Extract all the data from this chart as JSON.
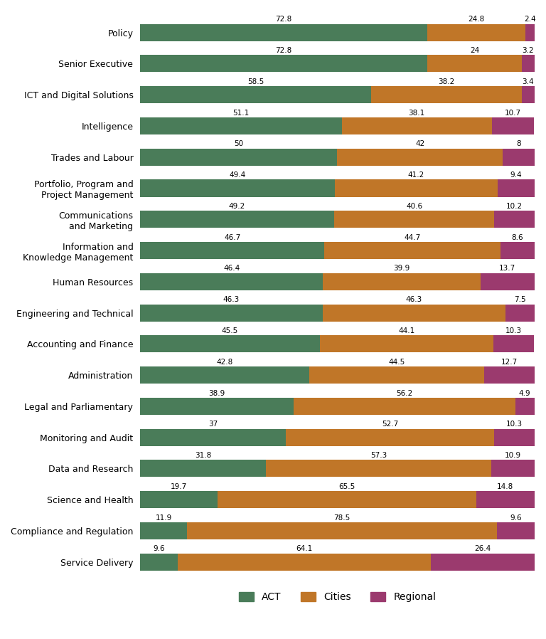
{
  "categories": [
    "Policy",
    "Senior Executive",
    "ICT and Digital Solutions",
    "Intelligence",
    "Trades and Labour",
    "Portfolio, Program and\nProject Management",
    "Communications\nand Marketing",
    "Information and\nKnowledge Management",
    "Human Resources",
    "Engineering and Technical",
    "Accounting and Finance",
    "Administration",
    "Legal and Parliamentary",
    "Monitoring and Audit",
    "Data and Research",
    "Science and Health",
    "Compliance and Regulation",
    "Service Delivery"
  ],
  "ACT": [
    72.8,
    72.8,
    58.5,
    51.1,
    50.0,
    49.4,
    49.2,
    46.7,
    46.4,
    46.3,
    45.5,
    42.8,
    38.9,
    37.0,
    31.8,
    19.7,
    11.9,
    9.6
  ],
  "Cities": [
    24.8,
    24.0,
    38.2,
    38.1,
    42.0,
    41.2,
    40.6,
    44.7,
    39.9,
    46.3,
    44.1,
    44.5,
    56.2,
    52.7,
    57.3,
    65.5,
    78.5,
    64.1
  ],
  "Regional": [
    2.4,
    3.2,
    3.4,
    10.7,
    8.0,
    9.4,
    10.2,
    8.6,
    13.7,
    7.5,
    10.3,
    12.7,
    4.9,
    10.3,
    10.9,
    14.8,
    9.6,
    26.4
  ],
  "colors": {
    "ACT": "#4a7c59",
    "Cities": "#c07628",
    "Regional": "#9b3a6e"
  },
  "bar_height": 0.55,
  "background_color": "#ffffff",
  "label_fontsize": 7.5,
  "tick_fontsize": 9
}
